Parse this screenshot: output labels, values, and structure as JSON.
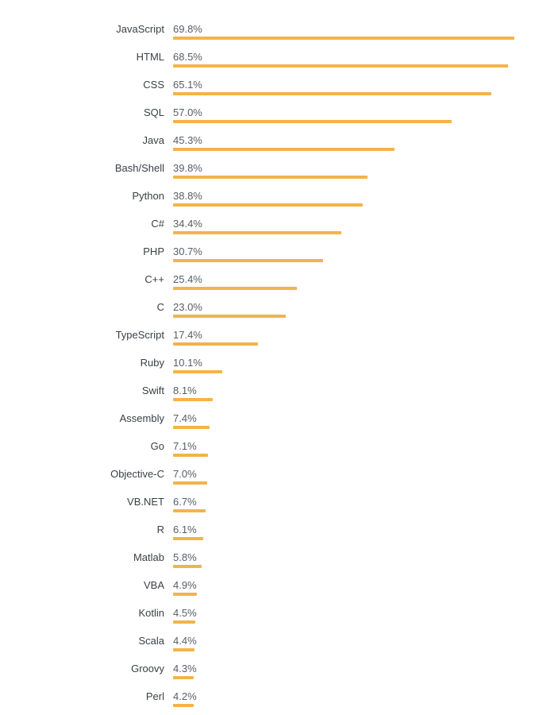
{
  "page": {
    "background": "#ffffff"
  },
  "chart_data": {
    "type": "bar",
    "orientation": "horizontal",
    "categories": [
      "JavaScript",
      "HTML",
      "CSS",
      "SQL",
      "Java",
      "Bash/Shell",
      "Python",
      "C#",
      "PHP",
      "C++",
      "C",
      "TypeScript",
      "Ruby",
      "Swift",
      "Assembly",
      "Go",
      "Objective-C",
      "VB.NET",
      "R",
      "Matlab",
      "VBA",
      "Kotlin",
      "Scala",
      "Groovy",
      "Perl"
    ],
    "values": [
      69.8,
      68.5,
      65.1,
      57.0,
      45.3,
      39.8,
      38.8,
      34.4,
      30.7,
      25.4,
      23.0,
      17.4,
      10.1,
      8.1,
      7.4,
      7.1,
      7.0,
      6.7,
      6.1,
      5.8,
      4.9,
      4.5,
      4.4,
      4.3,
      4.2
    ],
    "value_suffix": "%",
    "value_decimals": 1,
    "xlim": [
      0,
      75
    ],
    "grid": false,
    "legend": false,
    "bar_color": "#f3b34a",
    "label_color": "#3b4045",
    "value_color": "#575e65"
  }
}
